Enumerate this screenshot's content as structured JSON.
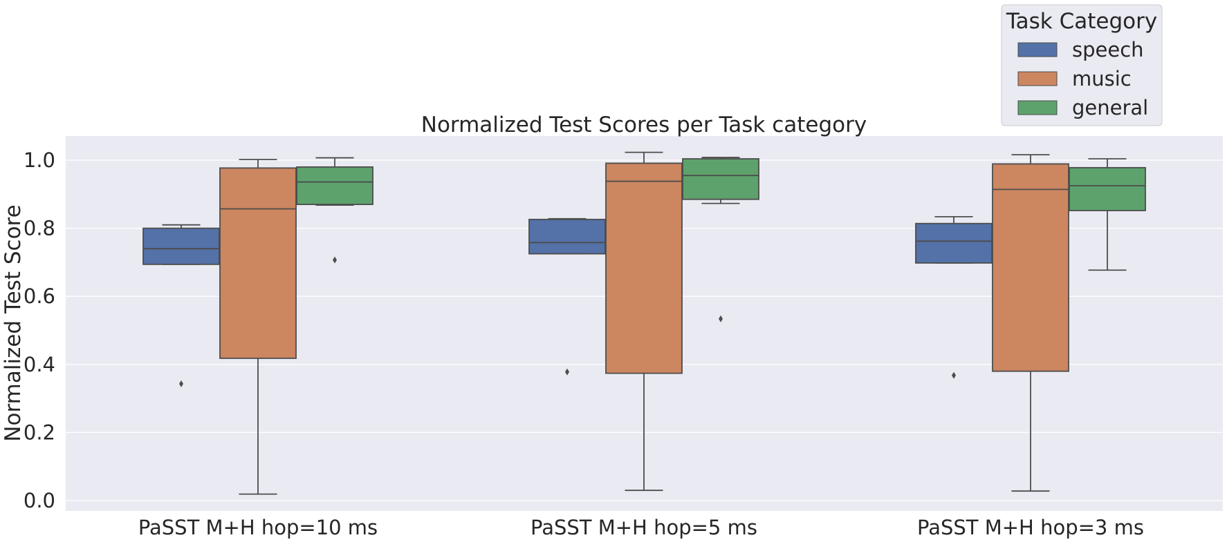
{
  "chart_data": {
    "type": "box",
    "title": "Normalized Test Scores per Task category",
    "xlabel": "",
    "ylabel": "Normalized Test Score",
    "ylim": [
      -0.03,
      1.07
    ],
    "yticks": [
      0.0,
      0.2,
      0.4,
      0.6,
      0.8,
      1.0
    ],
    "ytick_labels": [
      "0.0",
      "0.2",
      "0.4",
      "0.6",
      "0.8",
      "1.0"
    ],
    "grid": true,
    "categories": [
      "PaSST M+H hop=10 ms",
      "PaSST M+H hop=5 ms",
      "PaSST M+H hop=3 ms"
    ],
    "legend": {
      "title": "Task Category",
      "placement": "top-right, above plot"
    },
    "series": [
      {
        "name": "speech",
        "color": "#5471a8",
        "boxes": [
          {
            "whislo": 0.694,
            "q1": 0.694,
            "med": 0.74,
            "q3": 0.8,
            "whishi": 0.81,
            "fliers": [
              0.343
            ]
          },
          {
            "whislo": 0.725,
            "q1": 0.725,
            "med": 0.758,
            "q3": 0.826,
            "whishi": 0.828,
            "fliers": [
              0.378
            ]
          },
          {
            "whislo": 0.698,
            "q1": 0.698,
            "med": 0.762,
            "q3": 0.814,
            "whishi": 0.834,
            "fliers": [
              0.368
            ]
          }
        ]
      },
      {
        "name": "music",
        "color": "#cc8660",
        "boxes": [
          {
            "whislo": 0.019,
            "q1": 0.418,
            "med": 0.857,
            "q3": 0.977,
            "whishi": 1.002,
            "fliers": []
          },
          {
            "whislo": 0.03,
            "q1": 0.374,
            "med": 0.938,
            "q3": 0.991,
            "whishi": 1.023,
            "fliers": []
          },
          {
            "whislo": 0.028,
            "q1": 0.38,
            "med": 0.914,
            "q3": 0.989,
            "whishi": 1.016,
            "fliers": []
          }
        ]
      },
      {
        "name": "general",
        "color": "#5da26c",
        "boxes": [
          {
            "whislo": 0.868,
            "q1": 0.87,
            "med": 0.936,
            "q3": 0.98,
            "whishi": 1.007,
            "fliers": [
              0.707
            ]
          },
          {
            "whislo": 0.873,
            "q1": 0.885,
            "med": 0.955,
            "q3": 1.004,
            "whishi": 1.008,
            "fliers": [
              0.534
            ]
          },
          {
            "whislo": 0.677,
            "q1": 0.852,
            "med": 0.925,
            "q3": 0.978,
            "whishi": 1.004,
            "fliers": []
          }
        ]
      }
    ]
  }
}
